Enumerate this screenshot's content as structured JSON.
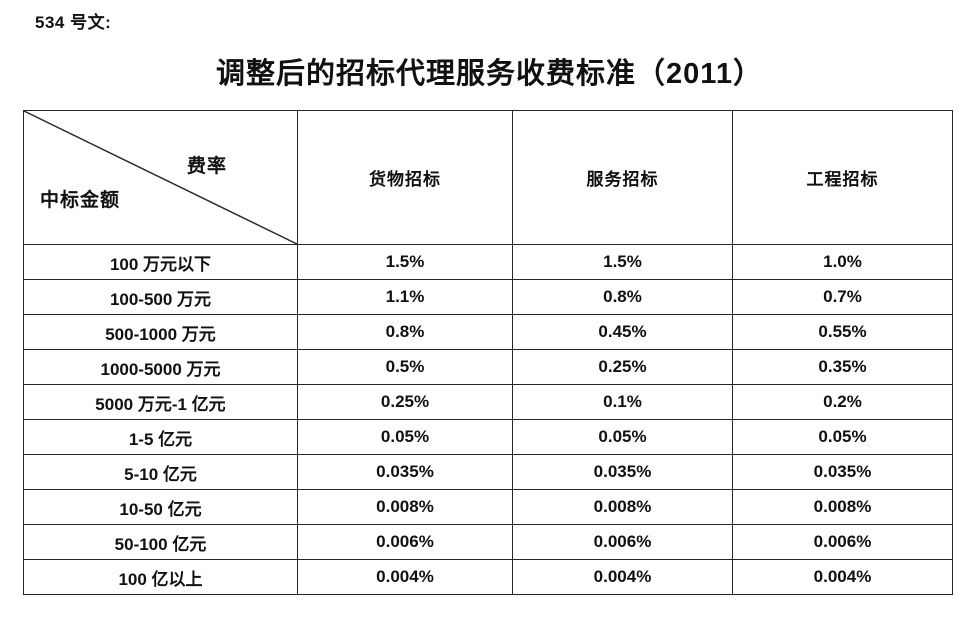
{
  "page": {
    "doc_label": "534 号文:",
    "title": "调整后的招标代理服务收费标准（2011）"
  },
  "colors": {
    "text": "#111111",
    "border": "#262626",
    "background": "#ffffff"
  },
  "table": {
    "corner": {
      "top_right_label": "费率",
      "bottom_left_label": "中标金额"
    },
    "columns": [
      "货物招标",
      "服务招标",
      "工程招标"
    ],
    "rows": [
      {
        "label": "100 万元以下",
        "values": [
          "1.5%",
          "1.5%",
          "1.0%"
        ]
      },
      {
        "label": "100-500 万元",
        "values": [
          "1.1%",
          "0.8%",
          "0.7%"
        ]
      },
      {
        "label": "500-1000 万元",
        "values": [
          "0.8%",
          "0.45%",
          "0.55%"
        ]
      },
      {
        "label": "1000-5000 万元",
        "values": [
          "0.5%",
          "0.25%",
          "0.35%"
        ]
      },
      {
        "label": "5000 万元-1 亿元",
        "values": [
          "0.25%",
          "0.1%",
          "0.2%"
        ]
      },
      {
        "label": "1-5 亿元",
        "values": [
          "0.05%",
          "0.05%",
          "0.05%"
        ]
      },
      {
        "label": "5-10 亿元",
        "values": [
          "0.035%",
          "0.035%",
          "0.035%"
        ]
      },
      {
        "label": "10-50 亿元",
        "values": [
          "0.008%",
          "0.008%",
          "0.008%"
        ]
      },
      {
        "label": "50-100 亿元",
        "values": [
          "0.006%",
          "0.006%",
          "0.006%"
        ]
      },
      {
        "label": "100 亿以上",
        "values": [
          "0.004%",
          "0.004%",
          "0.004%"
        ]
      }
    ]
  }
}
